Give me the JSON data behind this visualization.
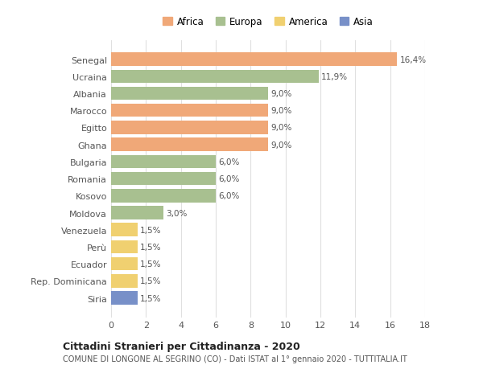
{
  "countries": [
    "Senegal",
    "Ucraina",
    "Albania",
    "Marocco",
    "Egitto",
    "Ghana",
    "Bulgaria",
    "Romania",
    "Kosovo",
    "Moldova",
    "Venezuela",
    "Perù",
    "Ecuador",
    "Rep. Dominicana",
    "Siria"
  ],
  "values": [
    16.4,
    11.9,
    9.0,
    9.0,
    9.0,
    9.0,
    6.0,
    6.0,
    6.0,
    3.0,
    1.5,
    1.5,
    1.5,
    1.5,
    1.5
  ],
  "continents": [
    "Africa",
    "Europa",
    "Europa",
    "Africa",
    "Africa",
    "Africa",
    "Europa",
    "Europa",
    "Europa",
    "Europa",
    "America",
    "America",
    "America",
    "America",
    "Asia"
  ],
  "labels": [
    "16,4%",
    "11,9%",
    "9,0%",
    "9,0%",
    "9,0%",
    "9,0%",
    "6,0%",
    "6,0%",
    "6,0%",
    "3,0%",
    "1,5%",
    "1,5%",
    "1,5%",
    "1,5%",
    "1,5%"
  ],
  "colors": {
    "Africa": "#F0A878",
    "Europa": "#A8C090",
    "America": "#F0D070",
    "Asia": "#7890C8"
  },
  "legend_order": [
    "Africa",
    "Europa",
    "America",
    "Asia"
  ],
  "title": "Cittadini Stranieri per Cittadinanza - 2020",
  "subtitle": "COMUNE DI LONGONE AL SEGRINO (CO) - Dati ISTAT al 1° gennaio 2020 - TUTTITALIA.IT",
  "xlim": [
    0,
    18
  ],
  "xticks": [
    0,
    2,
    4,
    6,
    8,
    10,
    12,
    14,
    16,
    18
  ],
  "background_color": "#ffffff",
  "grid_color": "#e0e0e0"
}
